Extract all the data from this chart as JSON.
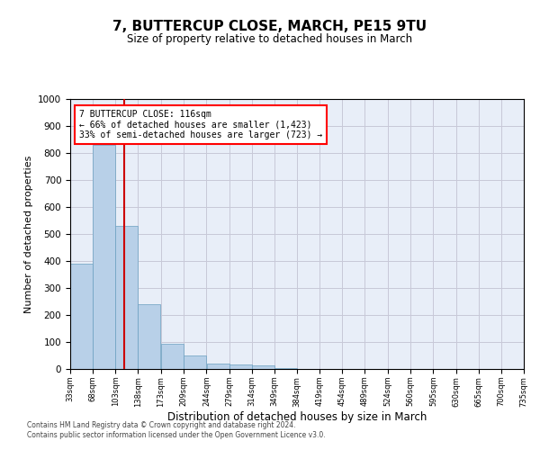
{
  "title": "7, BUTTERCUP CLOSE, MARCH, PE15 9TU",
  "subtitle": "Size of property relative to detached houses in March",
  "xlabel": "Distribution of detached houses by size in March",
  "ylabel": "Number of detached properties",
  "bar_color": "#b8d0e8",
  "bar_edge_color": "#6a9fc0",
  "bin_labels": [
    "33sqm",
    "68sqm",
    "103sqm",
    "138sqm",
    "173sqm",
    "209sqm",
    "244sqm",
    "279sqm",
    "314sqm",
    "349sqm",
    "384sqm",
    "419sqm",
    "454sqm",
    "489sqm",
    "524sqm",
    "560sqm",
    "595sqm",
    "630sqm",
    "665sqm",
    "700sqm",
    "735sqm"
  ],
  "bar_values": [
    390,
    830,
    530,
    240,
    95,
    50,
    20,
    18,
    12,
    5,
    0,
    0,
    0,
    0,
    0,
    0,
    0,
    0,
    0,
    0
  ],
  "bin_edges": [
    33,
    68,
    103,
    138,
    173,
    209,
    244,
    279,
    314,
    349,
    384,
    419,
    454,
    489,
    524,
    560,
    595,
    630,
    665,
    700,
    735
  ],
  "red_line_x": 116,
  "annotation_title": "7 BUTTERCUP CLOSE: 116sqm",
  "annotation_line1": "← 66% of detached houses are smaller (1,423)",
  "annotation_line2": "33% of semi-detached houses are larger (723) →",
  "annotation_box_color": "white",
  "annotation_box_edge_color": "red",
  "red_line_color": "#cc0000",
  "ylim": [
    0,
    1000
  ],
  "yticks": [
    0,
    100,
    200,
    300,
    400,
    500,
    600,
    700,
    800,
    900,
    1000
  ],
  "grid_color": "#c8c8d8",
  "bg_color": "#e8eef8",
  "footnote1": "Contains HM Land Registry data © Crown copyright and database right 2024.",
  "footnote2": "Contains public sector information licensed under the Open Government Licence v3.0."
}
